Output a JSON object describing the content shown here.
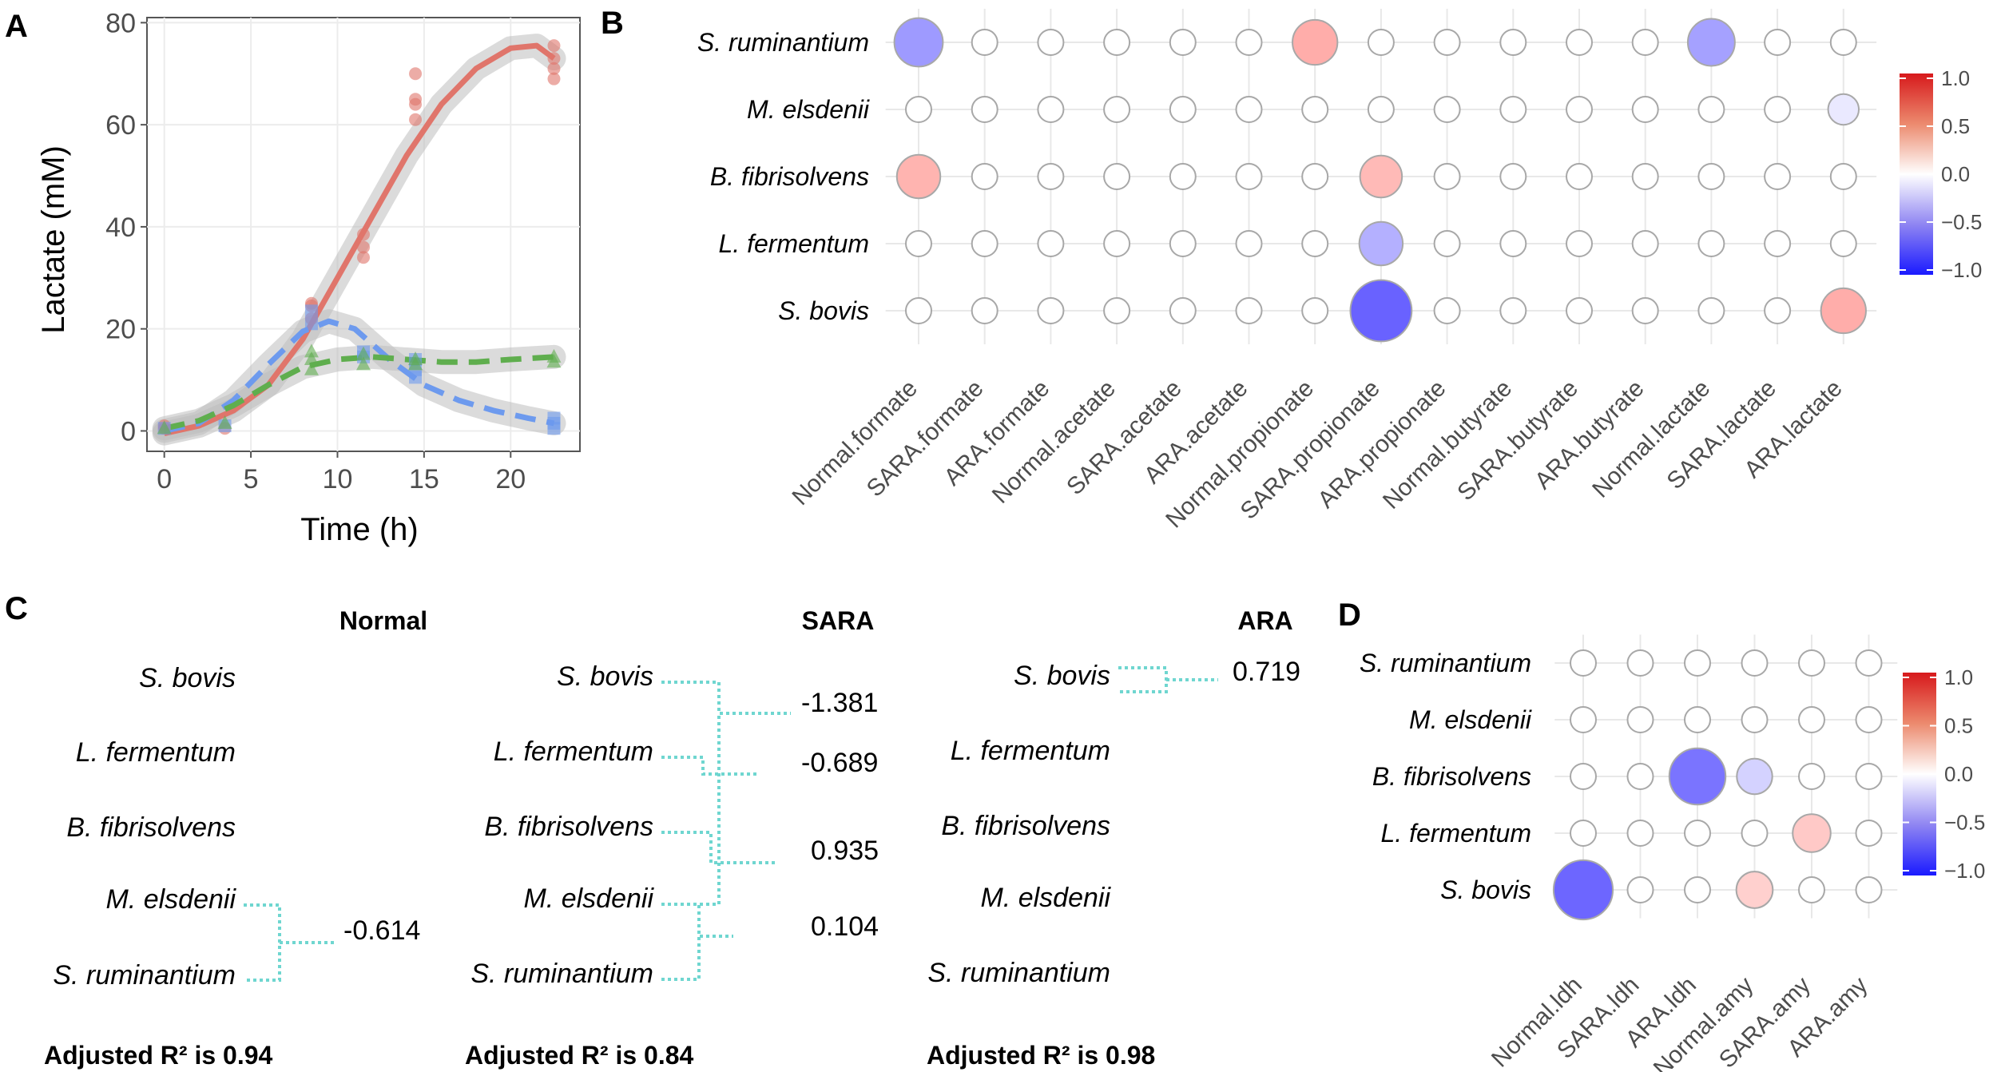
{
  "panels": {
    "A": "A",
    "B": "B",
    "C": "C",
    "D": "D"
  },
  "chart_data": [
    {
      "type": "scatter",
      "panel": "A",
      "xlabel": "Time (h)",
      "ylabel": "Lactate  (mM)",
      "xlim": [
        -1,
        24
      ],
      "ylim": [
        -4,
        81
      ],
      "xticks": [
        0,
        5,
        10,
        15,
        20
      ],
      "yticks": [
        0,
        20,
        40,
        60,
        80
      ],
      "grid": true,
      "colors": {
        "red": "#e0756b",
        "blue": "#6d9aee",
        "green": "#5fae4e",
        "ribbon": "#bdbdbd"
      },
      "series": [
        {
          "name": "red",
          "marker": "circle",
          "style": "solid",
          "points": [
            [
              0,
              0.5
            ],
            [
              0,
              1
            ],
            [
              3.5,
              0.5
            ],
            [
              8.5,
              22
            ],
            [
              8.5,
              24.5
            ],
            [
              8.5,
              25
            ],
            [
              11.5,
              34
            ],
            [
              11.5,
              36
            ],
            [
              11.5,
              38.5
            ],
            [
              14.5,
              61
            ],
            [
              14.5,
              64
            ],
            [
              14.5,
              65
            ],
            [
              14.5,
              70
            ],
            [
              22.5,
              69
            ],
            [
              22.5,
              71
            ],
            [
              22.5,
              73
            ],
            [
              22.5,
              75.5
            ]
          ],
          "fit": [
            [
              0,
              -0.5
            ],
            [
              2,
              1
            ],
            [
              4,
              4
            ],
            [
              6,
              9
            ],
            [
              8,
              18
            ],
            [
              10,
              30
            ],
            [
              12,
              42
            ],
            [
              14,
              54
            ],
            [
              16,
              64
            ],
            [
              18,
              71
            ],
            [
              20,
              75
            ],
            [
              21.5,
              75.5
            ],
            [
              22.5,
              73
            ]
          ]
        },
        {
          "name": "blue",
          "marker": "square",
          "style": "dashed",
          "points": [
            [
              0,
              0.5
            ],
            [
              3.5,
              1
            ],
            [
              8.5,
              21
            ],
            [
              8.5,
              23.5
            ],
            [
              11.5,
              14.5
            ],
            [
              11.5,
              15.5
            ],
            [
              14.5,
              10.5
            ],
            [
              14.5,
              12
            ],
            [
              14.5,
              14
            ],
            [
              22.5,
              0.5
            ],
            [
              22.5,
              1.5
            ],
            [
              22.5,
              2.5
            ]
          ],
          "fit": [
            [
              0,
              0
            ],
            [
              2,
              1.5
            ],
            [
              4,
              6
            ],
            [
              6,
              13
            ],
            [
              8,
              19.5
            ],
            [
              9.5,
              21.5
            ],
            [
              11,
              20
            ],
            [
              13,
              14
            ],
            [
              15,
              9
            ],
            [
              17,
              6
            ],
            [
              19,
              4
            ],
            [
              21,
              2.5
            ],
            [
              22.5,
              1.5
            ]
          ]
        },
        {
          "name": "green",
          "marker": "triangle",
          "style": "dashed",
          "points": [
            [
              0,
              0.5
            ],
            [
              3.5,
              1.5
            ],
            [
              8.5,
              12
            ],
            [
              8.5,
              14
            ],
            [
              8.5,
              15.5
            ],
            [
              11.5,
              13
            ],
            [
              11.5,
              15
            ],
            [
              14.5,
              13
            ],
            [
              14.5,
              14
            ],
            [
              22.5,
              13.5
            ],
            [
              22.5,
              14.5
            ]
          ],
          "fit": [
            [
              0,
              0.5
            ],
            [
              2,
              2
            ],
            [
              4,
              5
            ],
            [
              6,
              9
            ],
            [
              8,
              12.5
            ],
            [
              10,
              14
            ],
            [
              12,
              14.5
            ],
            [
              14,
              14
            ],
            [
              16,
              13.5
            ],
            [
              18,
              13.5
            ],
            [
              20,
              14
            ],
            [
              22.5,
              14.5
            ]
          ]
        }
      ]
    },
    {
      "type": "heatmap",
      "panel": "B",
      "rows": [
        "S. ruminantium",
        "M. elsdenii",
        "B. fibrisolvens",
        "L. fermentum",
        "S. bovis"
      ],
      "columns": [
        "Normal.formate",
        "SARA.formate",
        "ARA.formate",
        "Normal.acetate",
        "SARA.acetate",
        "ARA.acetate",
        "Normal.propionate",
        "SARA.propionate",
        "ARA.propionate",
        "Normal.butyrate",
        "SARA.butyrate",
        "ARA.butyrate",
        "Normal.lactate",
        "SARA.lactate",
        "ARA.lactate"
      ],
      "values": [
        [
          -0.45,
          0,
          0,
          0,
          0,
          0,
          0.38,
          0,
          0,
          0,
          0,
          0,
          -0.42,
          0,
          0
        ],
        [
          0,
          0,
          0,
          0,
          0,
          0,
          0,
          0,
          0,
          0,
          0,
          0,
          0,
          0,
          -0.1
        ],
        [
          0.35,
          0,
          0,
          0,
          0,
          0,
          0,
          0.32,
          0,
          0,
          0,
          0,
          0,
          0,
          0
        ],
        [
          0,
          0,
          0,
          0,
          0,
          0,
          0,
          -0.35,
          0,
          0,
          0,
          0,
          0,
          0,
          0
        ],
        [
          0,
          0,
          0,
          0,
          0,
          0,
          0,
          -0.7,
          0,
          0,
          0,
          0,
          0,
          0,
          0.38
        ]
      ],
      "colorbar": {
        "ticks": [
          "1.0",
          "0.5",
          "0.0",
          "−0.5",
          "−1.0"
        ],
        "range": [
          -1,
          1
        ]
      }
    },
    {
      "type": "table",
      "panel": "C",
      "groups": [
        {
          "title": "Normal",
          "species": [
            "S. bovis",
            "L. fermentum",
            "B. fibrisolvens",
            "M. elsdenii",
            "S. ruminantium"
          ],
          "values": [
            "-0.614"
          ],
          "footer": "Adjusted R² is 0.94"
        },
        {
          "title": "SARA",
          "species": [
            "S. bovis",
            "L. fermentum",
            "B. fibrisolvens",
            "M. elsdenii",
            "S. ruminantium"
          ],
          "values": [
            "-1.381",
            "-0.689",
            "0.935",
            "0.104"
          ],
          "footer": "Adjusted R² is 0.84"
        },
        {
          "title": "ARA",
          "species": [
            "S. bovis",
            "L. fermentum",
            "B. fibrisolvens",
            "M. elsdenii",
            "S. ruminantium"
          ],
          "values": [
            "0.719"
          ],
          "footer": "Adjusted R² is 0.98"
        }
      ],
      "bracket_color": "#6fd6d0"
    },
    {
      "type": "heatmap",
      "panel": "D",
      "rows": [
        "S. ruminantium",
        "M. elsdenii",
        "B. fibrisolvens",
        "L. fermentum",
        "S. bovis"
      ],
      "columns": [
        "Normal.ldh",
        "SARA.ldh",
        "ARA.ldh",
        "Normal.amy",
        "SARA.amy",
        "ARA.amy"
      ],
      "values": [
        [
          0,
          0,
          0,
          0,
          0,
          0
        ],
        [
          0,
          0,
          0,
          0,
          0,
          0
        ],
        [
          0,
          0,
          -0.62,
          -0.2,
          0,
          0
        ],
        [
          0,
          0,
          0,
          0,
          0.25,
          0
        ],
        [
          -0.68,
          0,
          0,
          0.22,
          0,
          0
        ]
      ],
      "colorbar": {
        "ticks": [
          "1.0",
          "0.5",
          "0.0",
          "−0.5",
          "−1.0"
        ],
        "range": [
          -1,
          1
        ]
      }
    }
  ]
}
